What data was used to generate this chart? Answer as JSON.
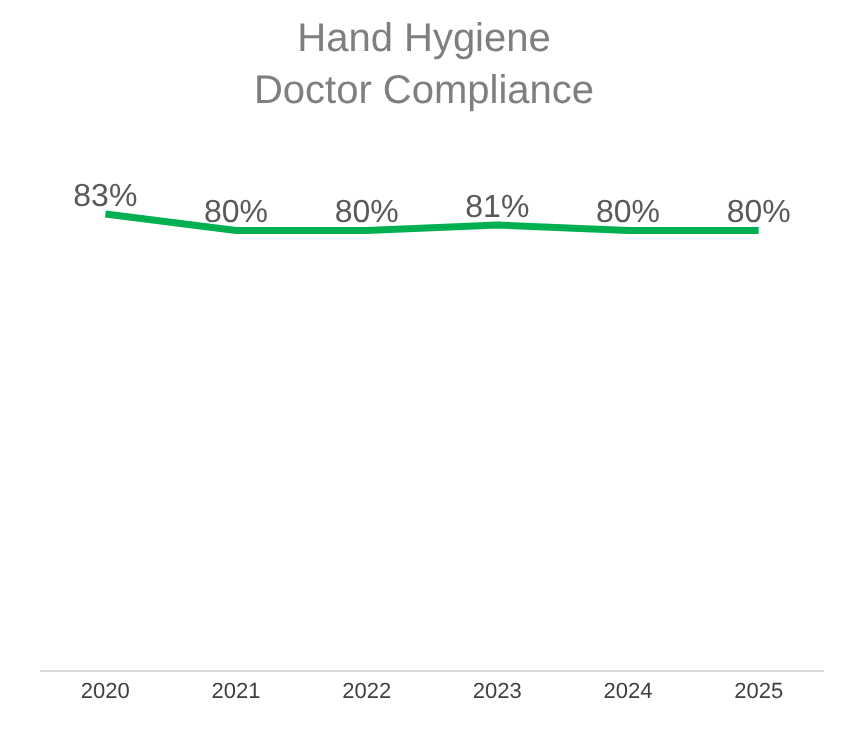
{
  "chart_data": {
    "type": "line",
    "title": "Hand Hygiene\nDoctor Compliance",
    "categories": [
      "2020",
      "2021",
      "2022",
      "2023",
      "2024",
      "2025"
    ],
    "series": [
      {
        "color": "#00b050",
        "values": [
          83,
          80,
          80,
          81,
          80,
          80
        ],
        "value_labels": [
          "83%",
          "80%",
          "80%",
          "81%",
          "80%",
          "80%"
        ]
      }
    ],
    "legend": false,
    "marker": "none",
    "line_style": "solid"
  }
}
